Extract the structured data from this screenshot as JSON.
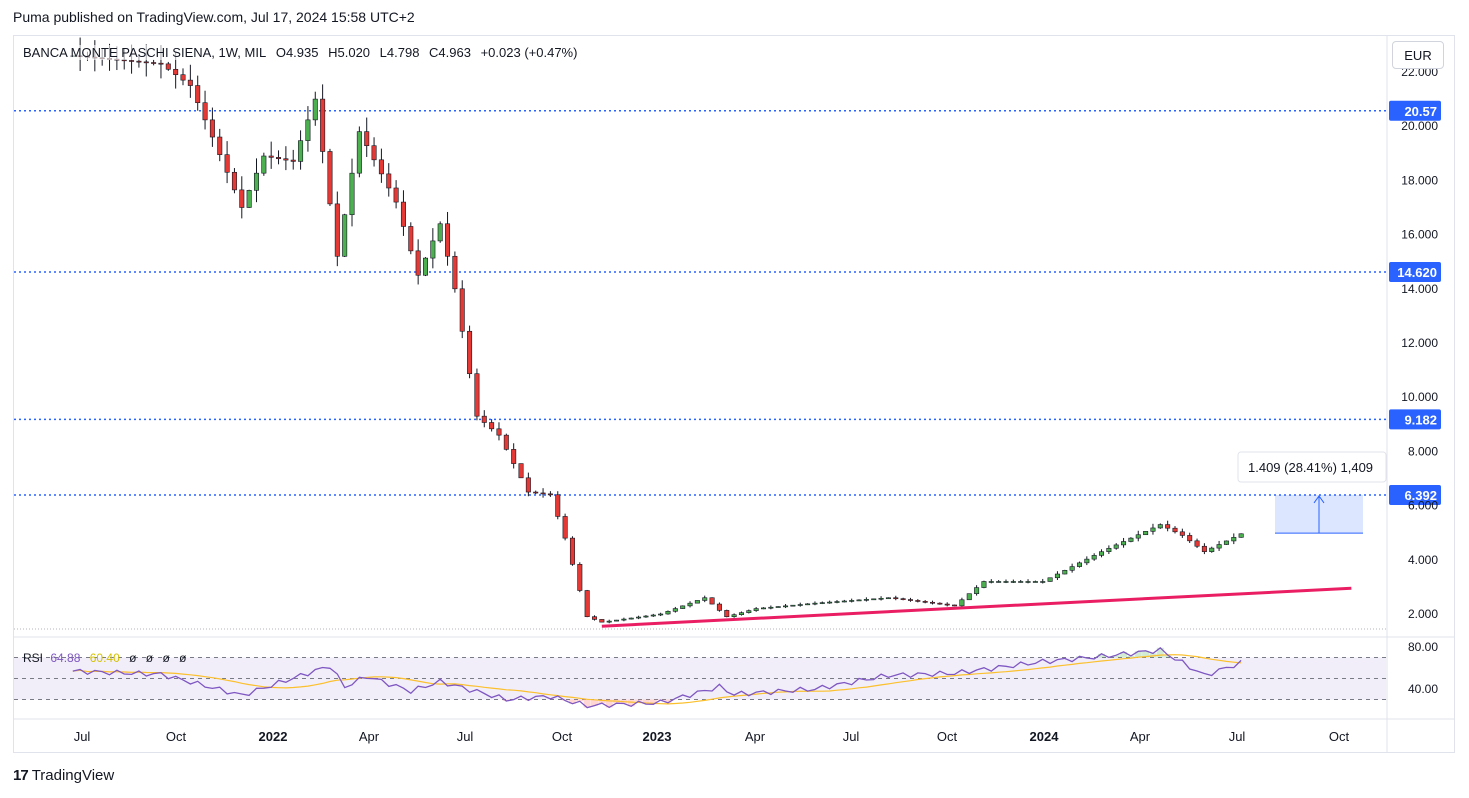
{
  "header": {
    "text": "Puma published on TradingView.com, Jul 17, 2024 15:58 UTC+2"
  },
  "legend": {
    "symbol": "BANCA MONTE PASCHI SIENA, 1W, MIL",
    "open": "O4.935",
    "high": "H5.020",
    "low": "L4.798",
    "close": "C4.963",
    "change": "+0.023 (+0.47%)"
  },
  "currency": "EUR",
  "rsi_legend": {
    "name": "RSI",
    "value": "64.88",
    "ma": "60.40",
    "zeros": [
      "ø",
      "ø",
      "ø",
      "ø"
    ]
  },
  "measure_label": "1.409 (28.41%) 1,409",
  "footer": {
    "brand": "TradingView",
    "logo": "17"
  },
  "colors": {
    "up": "#4caf50",
    "down": "#e53935",
    "rsi": "#7e57c2",
    "rsi_ma": "#fbc02d",
    "trendline": "#e91e63",
    "hline": "#2962ff"
  },
  "chart_data": {
    "type": "candlestick",
    "price_axis_labels": [
      "22.000",
      "20.000",
      "18.000",
      "16.000",
      "14.000",
      "12.000",
      "10.000",
      "8.000",
      "6.000",
      "4.000",
      "2.000"
    ],
    "time_axis_labels": [
      "Jul",
      "Oct",
      "2022",
      "Apr",
      "Jul",
      "Oct",
      "2023",
      "Apr",
      "Jul",
      "Oct",
      "2024",
      "Apr",
      "Jul",
      "Oct"
    ],
    "horizontal_levels": [
      {
        "label": "20.57",
        "value": 20.57
      },
      {
        "label": "14.620",
        "value": 14.62
      },
      {
        "label": "9.182",
        "value": 9.182
      },
      {
        "label": "6.392",
        "value": 6.392
      }
    ],
    "last_close": 4.963,
    "trendline": {
      "from": {
        "date": "2022-11-14",
        "value": 1.55
      },
      "to": {
        "date": "2024-10-28",
        "value": 2.95
      }
    },
    "measure_box": {
      "from_value": 4.983,
      "to_value": 6.392,
      "change": 1.409,
      "percent": 28.41
    },
    "rsi": {
      "axis_labels": [
        "80.00",
        "40.00"
      ],
      "bands": [
        70,
        30
      ],
      "value": 64.88,
      "ma": 60.4
    },
    "anchors": [
      {
        "date": "2021-06-28",
        "value": 22.6
      },
      {
        "date": "2021-09-20",
        "value": 22.3
      },
      {
        "date": "2021-10-18",
        "value": 21.5
      },
      {
        "date": "2021-11-08",
        "value": 19.6
      },
      {
        "date": "2021-12-06",
        "value": 17.0
      },
      {
        "date": "2021-12-27",
        "value": 18.9
      },
      {
        "date": "2022-01-24",
        "value": 18.7
      },
      {
        "date": "2022-02-14",
        "value": 21.0
      },
      {
        "date": "2022-03-07",
        "value": 15.2
      },
      {
        "date": "2022-03-28",
        "value": 19.8
      },
      {
        "date": "2022-05-02",
        "value": 17.2
      },
      {
        "date": "2022-05-23",
        "value": 14.5
      },
      {
        "date": "2022-06-13",
        "value": 16.4
      },
      {
        "date": "2022-06-27",
        "value": 14.0
      },
      {
        "date": "2022-07-18",
        "value": 9.3
      },
      {
        "date": "2022-08-08",
        "value": 8.6
      },
      {
        "date": "2022-09-05",
        "value": 6.5
      },
      {
        "date": "2022-09-26",
        "value": 6.4
      },
      {
        "date": "2022-10-10",
        "value": 4.8
      },
      {
        "date": "2022-10-31",
        "value": 1.9
      },
      {
        "date": "2022-11-14",
        "value": 1.7
      },
      {
        "date": "2023-01-09",
        "value": 2.0
      },
      {
        "date": "2023-02-20",
        "value": 2.6
      },
      {
        "date": "2023-03-13",
        "value": 1.9
      },
      {
        "date": "2023-04-10",
        "value": 2.2
      },
      {
        "date": "2023-06-05",
        "value": 2.4
      },
      {
        "date": "2023-08-14",
        "value": 2.6
      },
      {
        "date": "2023-10-16",
        "value": 2.3
      },
      {
        "date": "2023-11-13",
        "value": 3.2
      },
      {
        "date": "2024-01-08",
        "value": 3.2
      },
      {
        "date": "2024-03-04",
        "value": 4.3
      },
      {
        "date": "2024-04-29",
        "value": 5.3
      },
      {
        "date": "2024-05-20",
        "value": 4.9
      },
      {
        "date": "2024-06-10",
        "value": 4.3
      },
      {
        "date": "2024-07-15",
        "value": 4.96
      }
    ],
    "rsi_anchors": [
      {
        "date": "2021-06-28",
        "value": 57
      },
      {
        "date": "2021-09-20",
        "value": 54
      },
      {
        "date": "2021-12-06",
        "value": 34
      },
      {
        "date": "2022-02-28",
        "value": 62
      },
      {
        "date": "2022-03-14",
        "value": 42
      },
      {
        "date": "2022-04-04",
        "value": 52
      },
      {
        "date": "2022-05-16",
        "value": 38
      },
      {
        "date": "2022-06-13",
        "value": 47
      },
      {
        "date": "2022-08-15",
        "value": 30
      },
      {
        "date": "2022-09-26",
        "value": 33
      },
      {
        "date": "2022-10-31",
        "value": 24
      },
      {
        "date": "2023-01-09",
        "value": 27
      },
      {
        "date": "2023-03-06",
        "value": 42
      },
      {
        "date": "2023-03-20",
        "value": 35
      },
      {
        "date": "2023-06-05",
        "value": 40
      },
      {
        "date": "2023-08-14",
        "value": 53
      },
      {
        "date": "2023-10-16",
        "value": 55
      },
      {
        "date": "2024-01-08",
        "value": 66
      },
      {
        "date": "2024-03-04",
        "value": 71
      },
      {
        "date": "2024-04-29",
        "value": 77
      },
      {
        "date": "2024-06-10",
        "value": 53
      },
      {
        "date": "2024-07-15",
        "value": 64.88
      }
    ]
  }
}
